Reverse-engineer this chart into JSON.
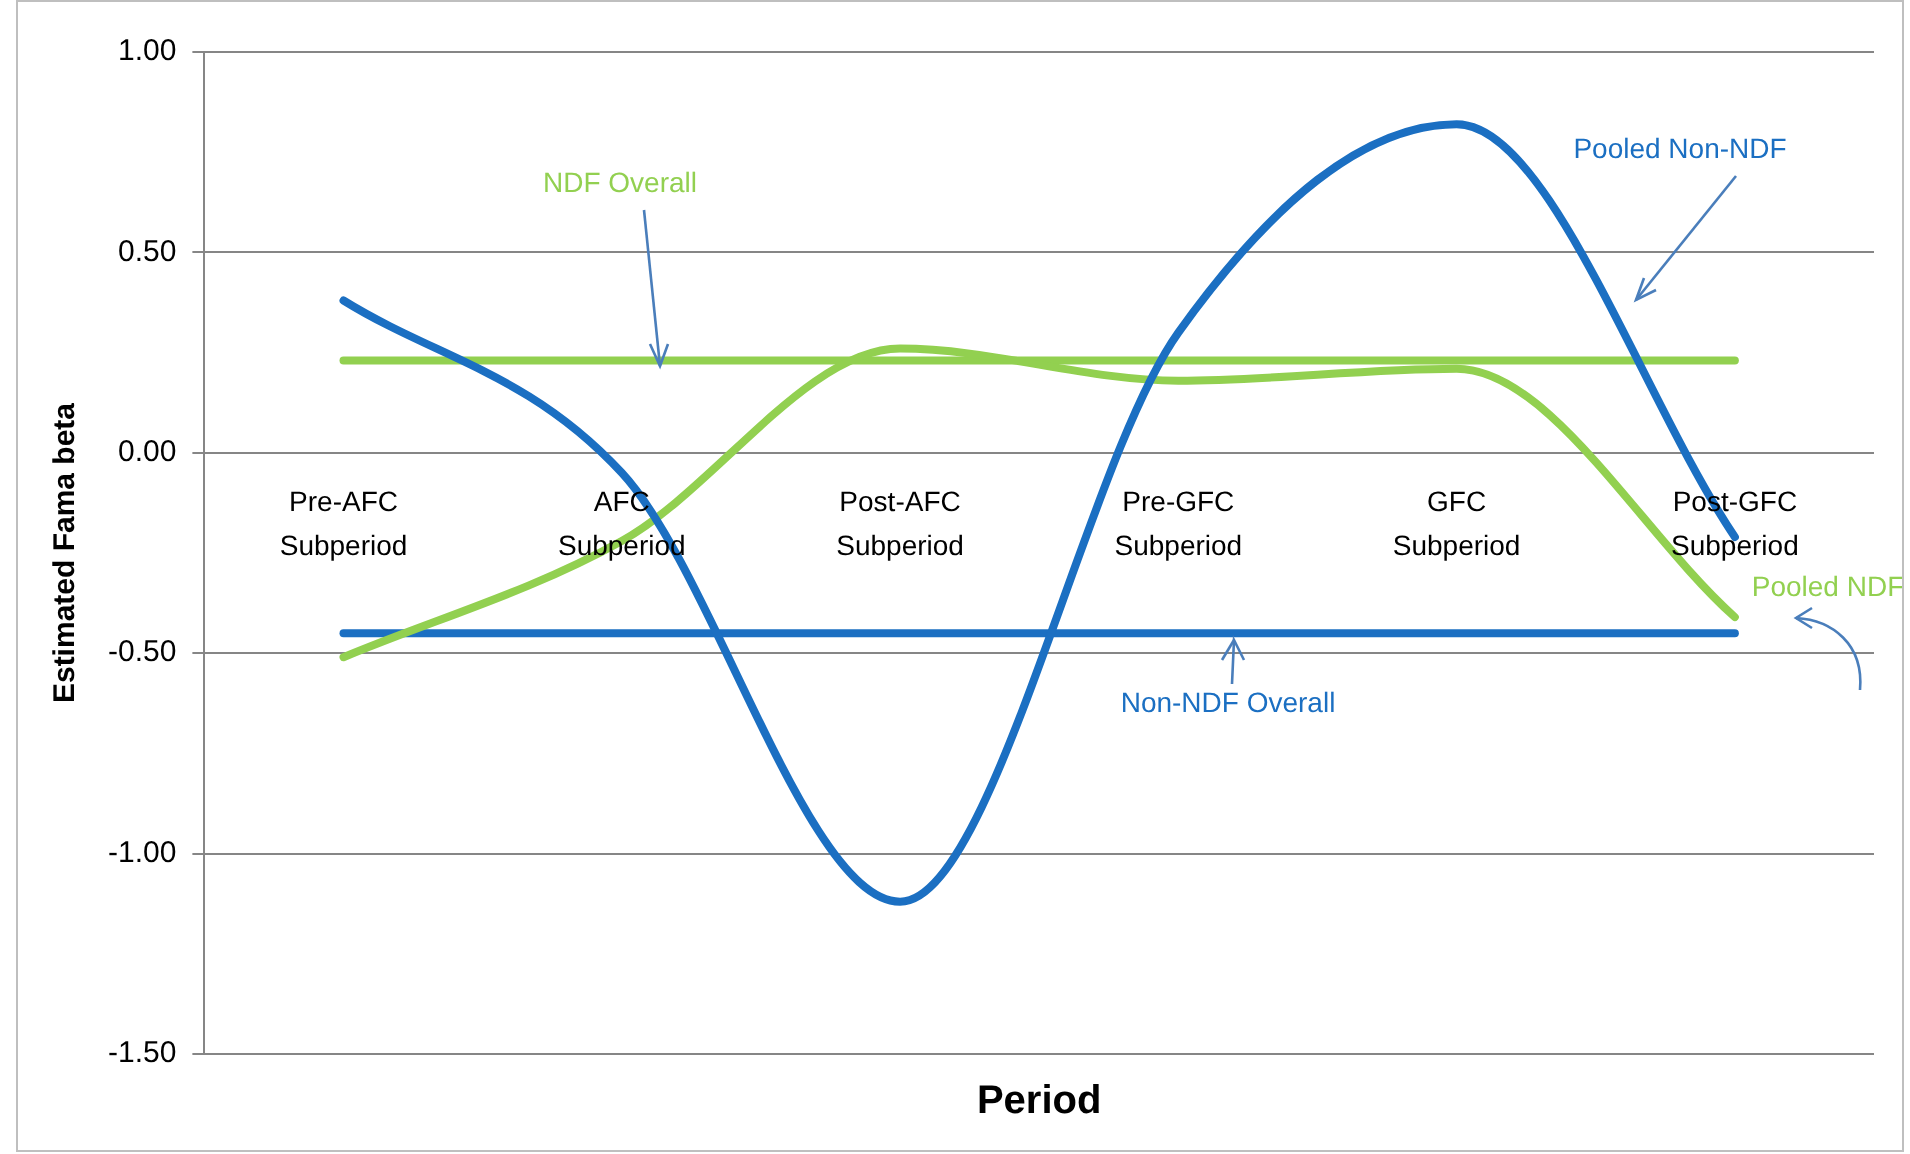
{
  "chart_data": {
    "type": "line",
    "xlabel": "Period",
    "ylabel": "Estimated Fama beta",
    "categories": [
      "Pre-AFC Subperiod",
      "AFC Subperiod",
      "Post-AFC Subperiod",
      "Pre-GFC Subperiod",
      "GFC Subperiod",
      "Post-GFC Subperiod"
    ],
    "series": [
      {
        "name": "Pooled Non-NDF",
        "color": "#1b6fc2",
        "values": [
          0.38,
          -0.05,
          -1.12,
          0.3,
          0.82,
          -0.21
        ]
      },
      {
        "name": "Pooled NDF",
        "color": "#92d050",
        "values": [
          -0.51,
          -0.22,
          0.26,
          0.18,
          0.21,
          -0.41
        ]
      },
      {
        "name": "NDF Overall",
        "color": "#92d050",
        "values": [
          0.23,
          0.23,
          0.23,
          0.23,
          0.23,
          0.23
        ]
      },
      {
        "name": "Non-NDF Overall",
        "color": "#1b6fc2",
        "values": [
          -0.45,
          -0.45,
          -0.45,
          -0.45,
          -0.45,
          -0.45
        ]
      }
    ],
    "ylim": [
      -1.5,
      1
    ],
    "yticks": [
      {
        "value": -1.5,
        "label": "-1.50"
      },
      {
        "value": -1,
        "label": "-1.00"
      },
      {
        "value": -0.5,
        "label": "-0.50"
      },
      {
        "value": 0,
        "label": "0.00"
      },
      {
        "value": 0.5,
        "label": "0.50"
      },
      {
        "value": 1,
        "label": "1.00"
      }
    ],
    "grid": "y",
    "legend": false,
    "marker": "none",
    "line_style": "solid"
  }
}
